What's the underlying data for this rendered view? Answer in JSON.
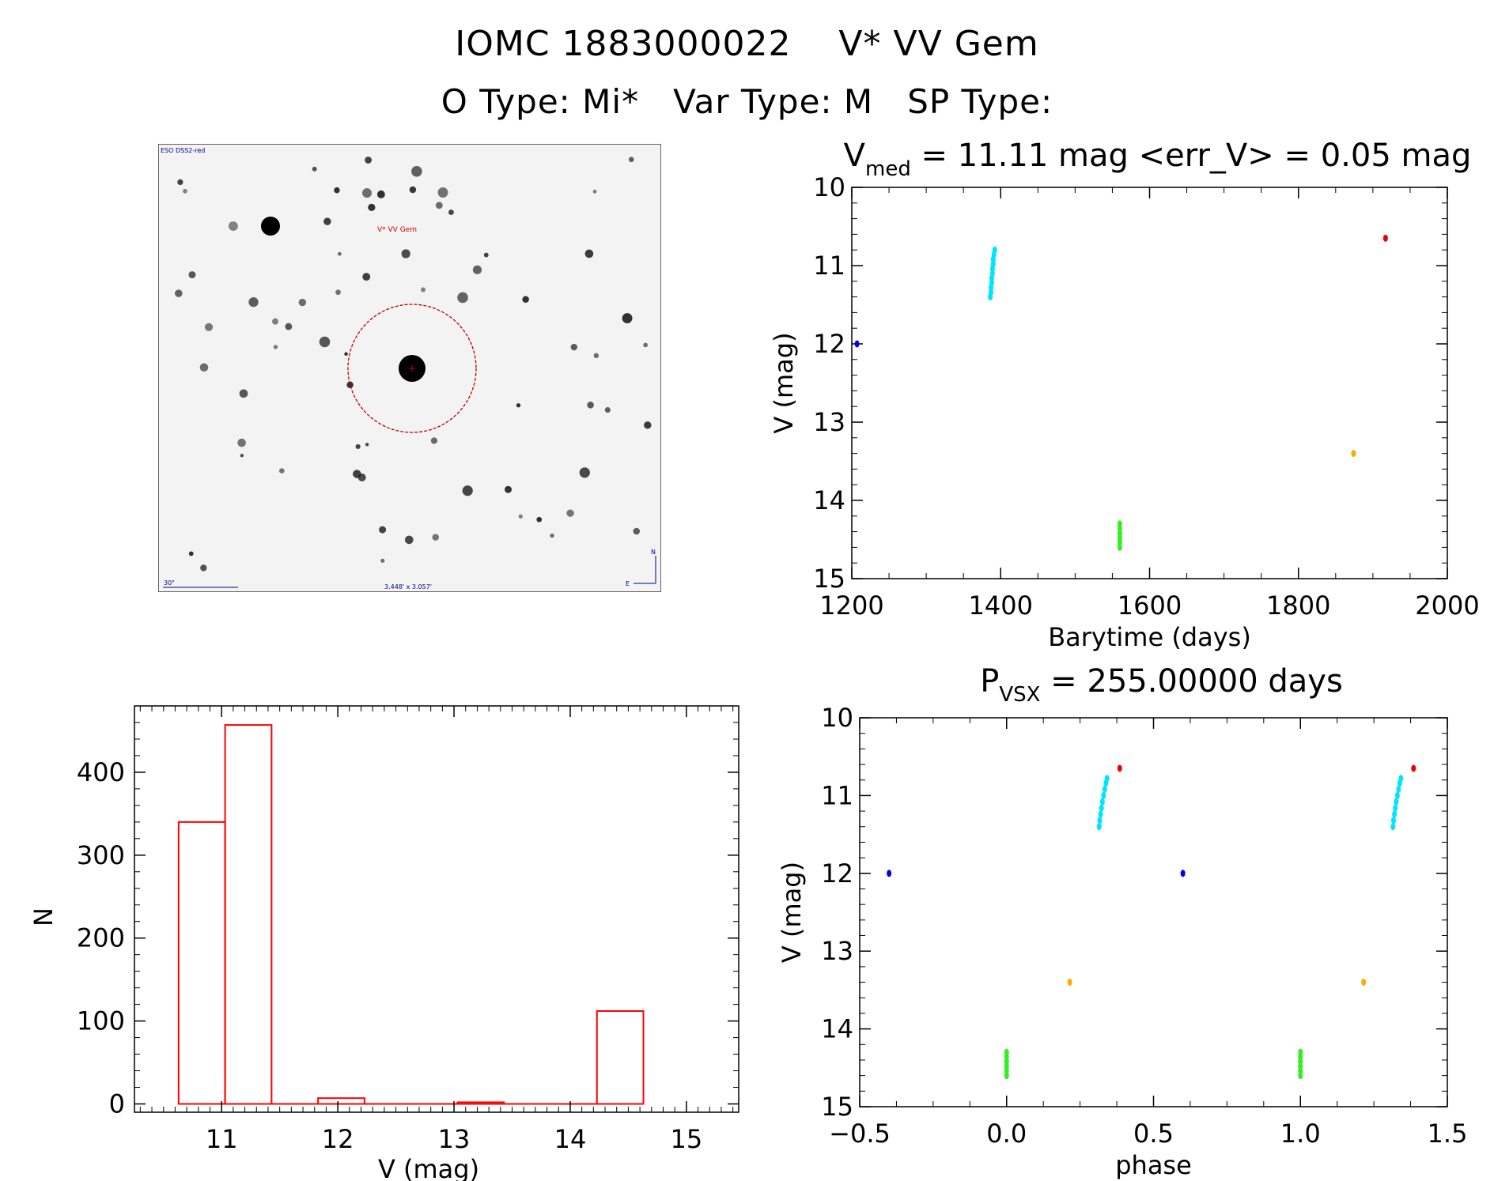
{
  "header": {
    "title": "IOMC 1883000022    V* VV Gem",
    "subtitle": "O Type: Mi*   Var Type: M   SP Type:"
  },
  "finding_chart": {
    "survey_label": "ESO DSS2-red",
    "object_label": "V* VV Gem",
    "scale_label": "30\"",
    "fov_label": "3.448' x 3.057'",
    "north_label": "N",
    "east_label": "E"
  },
  "colors": {
    "hist": "#ff0000",
    "cyan": "#00e5ff",
    "green": "#33ee22",
    "blue": "#0000ee",
    "red": "#ee0000",
    "orange": "#ffaa00"
  },
  "chart_data": [
    {
      "type": "scatter",
      "title_main": "V",
      "title_sub": "med",
      "title_rest": " = 11.11 mag <err_V> = 0.05 mag",
      "xlabel": "Barytime (days)",
      "ylabel": "V (mag)",
      "xlim": [
        1200,
        2000
      ],
      "ylim": [
        15,
        10
      ],
      "xticks": [
        "1200",
        "1400",
        "1600",
        "1800",
        "2000"
      ],
      "yticks": [
        "10",
        "11",
        "12",
        "13",
        "14",
        "15"
      ],
      "series": [
        {
          "color": "cyan",
          "points": [
            [
              1386,
              11.4
            ],
            [
              1387,
              11.34
            ],
            [
              1387,
              11.28
            ],
            [
              1388,
              11.22
            ],
            [
              1388,
              11.16
            ],
            [
              1389,
              11.1
            ],
            [
              1389,
              11.04
            ],
            [
              1390,
              10.98
            ],
            [
              1390,
              10.92
            ],
            [
              1391,
              10.86
            ],
            [
              1392,
              10.8
            ]
          ]
        },
        {
          "color": "green",
          "points": [
            [
              1560,
              14.3
            ],
            [
              1560,
              14.36
            ],
            [
              1560,
              14.42
            ],
            [
              1560,
              14.48
            ],
            [
              1560,
              14.54
            ],
            [
              1560,
              14.6
            ]
          ]
        },
        {
          "color": "blue",
          "points": [
            [
              1207,
              12.0
            ]
          ]
        },
        {
          "color": "red",
          "points": [
            [
              1917,
              10.65
            ]
          ]
        },
        {
          "color": "orange",
          "points": [
            [
              1874,
              13.4
            ]
          ]
        }
      ]
    },
    {
      "type": "bar",
      "xlabel": "V (mag)",
      "ylabel": "N",
      "xlim": [
        10.25,
        15.45
      ],
      "ylim": [
        -10,
        480
      ],
      "xticks": [
        "11",
        "12",
        "13",
        "14",
        "15"
      ],
      "yticks": [
        "0",
        "100",
        "200",
        "300",
        "400"
      ],
      "bins": [
        {
          "x0": 10.63,
          "x1": 11.03,
          "value": 340
        },
        {
          "x0": 11.03,
          "x1": 11.43,
          "value": 457
        },
        {
          "x0": 11.83,
          "x1": 12.23,
          "value": 7
        },
        {
          "x0": 13.03,
          "x1": 13.43,
          "value": 2
        },
        {
          "x0": 14.23,
          "x1": 14.63,
          "value": 112
        }
      ]
    },
    {
      "type": "scatter",
      "title_main": "P",
      "title_sub": "VSX",
      "title_rest": " = 255.00000 days",
      "xlabel": "phase",
      "ylabel": "V (mag)",
      "xlim": [
        -0.5,
        1.5
      ],
      "ylim": [
        15,
        10
      ],
      "xticks": [
        "−0.5",
        "0.0",
        "0.5",
        "1.0",
        "1.5"
      ],
      "yticks": [
        "10",
        "11",
        "12",
        "13",
        "14",
        "15"
      ],
      "series": [
        {
          "color": "cyan",
          "points": [
            [
              0.315,
              11.4
            ],
            [
              0.317,
              11.32
            ],
            [
              0.32,
              11.24
            ],
            [
              0.323,
              11.16
            ],
            [
              0.326,
              11.08
            ],
            [
              0.33,
              11.0
            ],
            [
              0.334,
              10.92
            ],
            [
              0.338,
              10.84
            ],
            [
              0.342,
              10.78
            ],
            [
              1.315,
              11.4
            ],
            [
              1.317,
              11.32
            ],
            [
              1.32,
              11.24
            ],
            [
              1.323,
              11.16
            ],
            [
              1.326,
              11.08
            ],
            [
              1.33,
              11.0
            ],
            [
              1.334,
              10.92
            ],
            [
              1.338,
              10.84
            ],
            [
              1.342,
              10.78
            ]
          ]
        },
        {
          "color": "green",
          "points": [
            [
              0.0,
              14.3
            ],
            [
              0.0,
              14.36
            ],
            [
              0.0,
              14.42
            ],
            [
              0.0,
              14.48
            ],
            [
              0.0,
              14.54
            ],
            [
              0.0,
              14.6
            ],
            [
              1.0,
              14.3
            ],
            [
              1.0,
              14.36
            ],
            [
              1.0,
              14.42
            ],
            [
              1.0,
              14.48
            ],
            [
              1.0,
              14.54
            ],
            [
              1.0,
              14.6
            ]
          ]
        },
        {
          "color": "blue",
          "points": [
            [
              -0.4,
              12.0
            ],
            [
              0.6,
              12.0
            ]
          ]
        },
        {
          "color": "red",
          "points": [
            [
              0.385,
              10.65
            ],
            [
              1.385,
              10.65
            ]
          ]
        },
        {
          "color": "orange",
          "points": [
            [
              0.215,
              13.4
            ],
            [
              1.215,
              13.4
            ]
          ]
        }
      ]
    }
  ]
}
